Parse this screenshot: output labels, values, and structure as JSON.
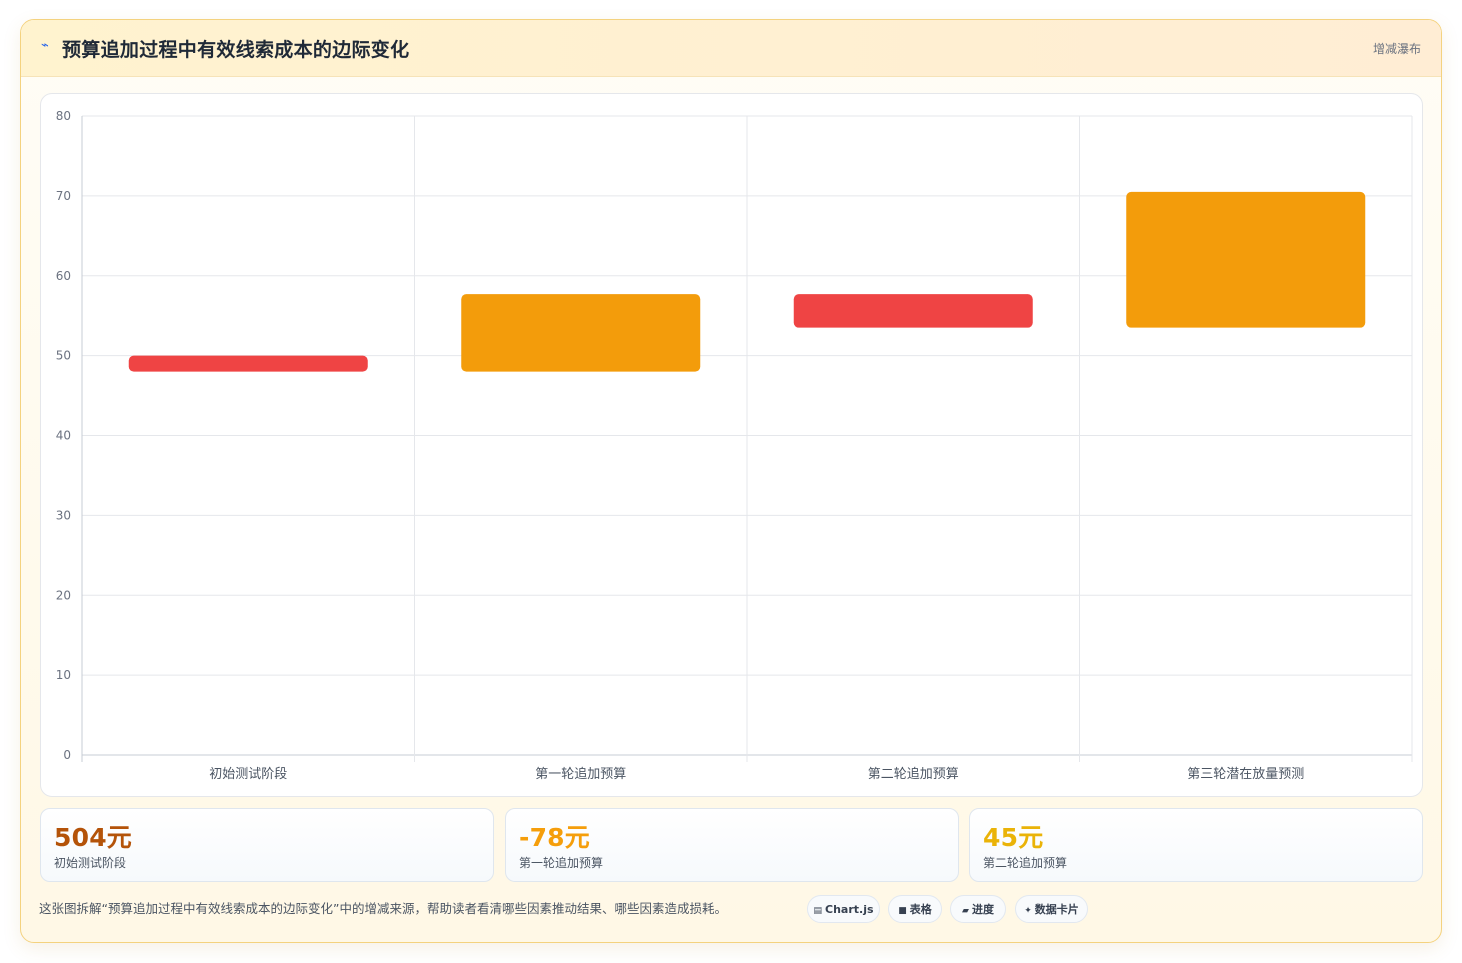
{
  "header": {
    "title_icon": "chart-line-icon",
    "title": "预算追加过程中有效线索成本的边际变化",
    "chart_type_label": "增减瀑布"
  },
  "chart_data": {
    "type": "bar",
    "subtype": "waterfall-floating",
    "categories": [
      "初始测试阶段",
      "第一轮追加预算",
      "第二轮追加预算",
      "第三轮潜在放量预测"
    ],
    "bars": [
      {
        "category": "初始测试阶段",
        "low": 48,
        "high": 50,
        "color": "#ef4444"
      },
      {
        "category": "第一轮追加预算",
        "low": 48,
        "high": 57.7,
        "color": "#f39c0b"
      },
      {
        "category": "第二轮追加预算",
        "low": 53.5,
        "high": 57.7,
        "color": "#ef4444"
      },
      {
        "category": "第三轮潜在放量预测",
        "low": 53.5,
        "high": 70.5,
        "color": "#f39c0b"
      }
    ],
    "ylim": [
      0,
      80
    ],
    "yticks": [
      0,
      10,
      20,
      30,
      40,
      50,
      60,
      70,
      80
    ],
    "grid": true,
    "legend": "none"
  },
  "stats": [
    {
      "value": "504元",
      "label": "初始测试阶段",
      "color": "#b45309"
    },
    {
      "value": "-78元",
      "label": "第一轮追加预算",
      "color": "#f59e0b"
    },
    {
      "value": "45元",
      "label": "第二轮追加预算",
      "color": "#eab308"
    }
  ],
  "footnote": "这张图拆解“预算追加过程中有效线索成本的边际变化”中的增减来源，帮助读者看清哪些因素推动结果、哪些因素造成损耗。",
  "chips": [
    {
      "icon": "chart-icon",
      "glyph": "▤",
      "label": "Chart.js"
    },
    {
      "icon": "table-icon",
      "glyph": "■",
      "label": "表格"
    },
    {
      "icon": "progress-icon",
      "glyph": "▰",
      "label": "进度"
    },
    {
      "icon": "sparkle-icon",
      "glyph": "✦",
      "label": "数据卡片"
    }
  ]
}
